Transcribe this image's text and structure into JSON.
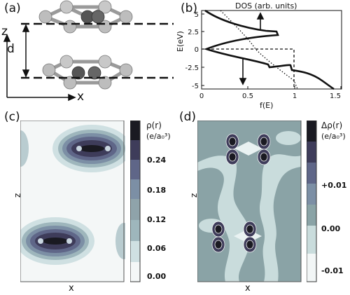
{
  "panels": {
    "a": {
      "label": "(a)",
      "axis_z": "z",
      "axis_x": "x",
      "axis_d": "d"
    },
    "b": {
      "label": "(b)",
      "title": "DOS (arb. units)",
      "ylabel": "E(eV)",
      "xlabel": "f(E)",
      "yticks": [
        "5",
        "2.5",
        "0",
        "-2.5",
        "-5"
      ],
      "xticks": [
        "0",
        "0.5",
        "1",
        "1.5"
      ]
    },
    "c": {
      "label": "(c)",
      "xlabel": "x",
      "zlabel": "z",
      "cbar_title_1": "ρ(r)",
      "cbar_title_2": "(e/a₀³)",
      "cbar_ticks": [
        "0.24",
        "0.18",
        "0.12",
        "0.06",
        "0.00"
      ]
    },
    "d": {
      "label": "(d)",
      "xlabel": "x",
      "zlabel": "z",
      "cbar_title_1": "Δρ(r)",
      "cbar_title_2": "(e/a₀³)",
      "cbar_ticks": [
        "+0.01",
        "0.00",
        "-0.01"
      ]
    }
  },
  "colors": {
    "dark": "#1a1a22",
    "contour_low": "#f3f6f6",
    "contour_mid": "#8fa3aa",
    "contour_high": "#3e3c5a",
    "diff_bg": "#8aa3a6",
    "diff_light": "#c9dcdc"
  }
}
